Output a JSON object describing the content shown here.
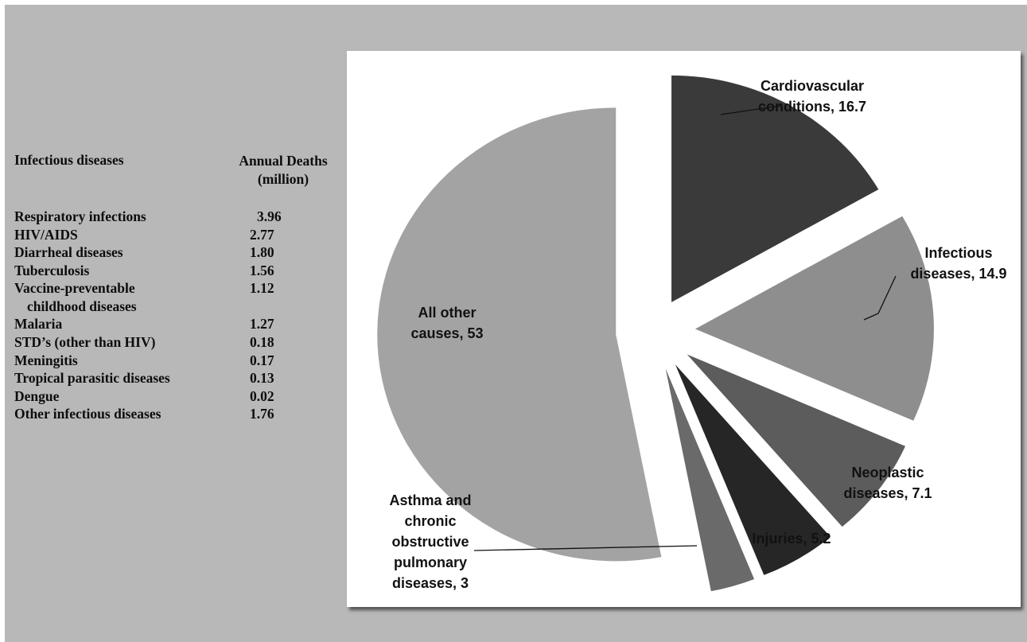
{
  "table": {
    "header": {
      "col1": "Infectious diseases",
      "col2_line1": "Annual Deaths",
      "col2_line2": "(million)"
    },
    "rows": [
      {
        "name": "Respiratory infections",
        "value": "3.96"
      },
      {
        "name": "HIV/AIDS",
        "value": "2.77"
      },
      {
        "name": "Diarrheal diseases",
        "value": "1.80"
      },
      {
        "name": "Tuberculosis",
        "value": "1.56"
      },
      {
        "name": "Vaccine-preventable",
        "name_line2": "childhood diseases",
        "value": "1.12"
      },
      {
        "name": "Malaria",
        "value": "1.27"
      },
      {
        "name": "STD’s (other than HIV)",
        "value": "0.18"
      },
      {
        "name": "Meningitis",
        "value": "0.17"
      },
      {
        "name": "Tropical parasitic diseases",
        "value": "0.13"
      },
      {
        "name": "Dengue",
        "value": "0.02"
      },
      {
        "name": "Other infectious diseases",
        "value": "1.76"
      }
    ]
  },
  "chart_data": {
    "type": "pie",
    "title": "",
    "slices": [
      {
        "label_lines": [
          "Cardiovascular",
          "conditions, 16.7"
        ],
        "value": 16.7,
        "color": "#3a3a3a"
      },
      {
        "label_lines": [
          "Infectious",
          "diseases, 14.9"
        ],
        "value": 14.9,
        "color": "#8e8e8e"
      },
      {
        "label_lines": [
          "Neoplastic",
          "diseases, 7.1"
        ],
        "value": 7.1,
        "color": "#5c5c5c"
      },
      {
        "label_lines": [
          "Injuries, 5.2"
        ],
        "value": 5.2,
        "color": "#262626"
      },
      {
        "label_lines": [
          "Asthma and",
          "chronic",
          "obstructive",
          "pulmonary",
          "diseases, 3"
        ],
        "value": 3,
        "color": "#6a6a6a"
      },
      {
        "label_lines": [
          "All other",
          "causes, 53"
        ],
        "value": 53,
        "color": "#a3a3a3"
      }
    ]
  }
}
